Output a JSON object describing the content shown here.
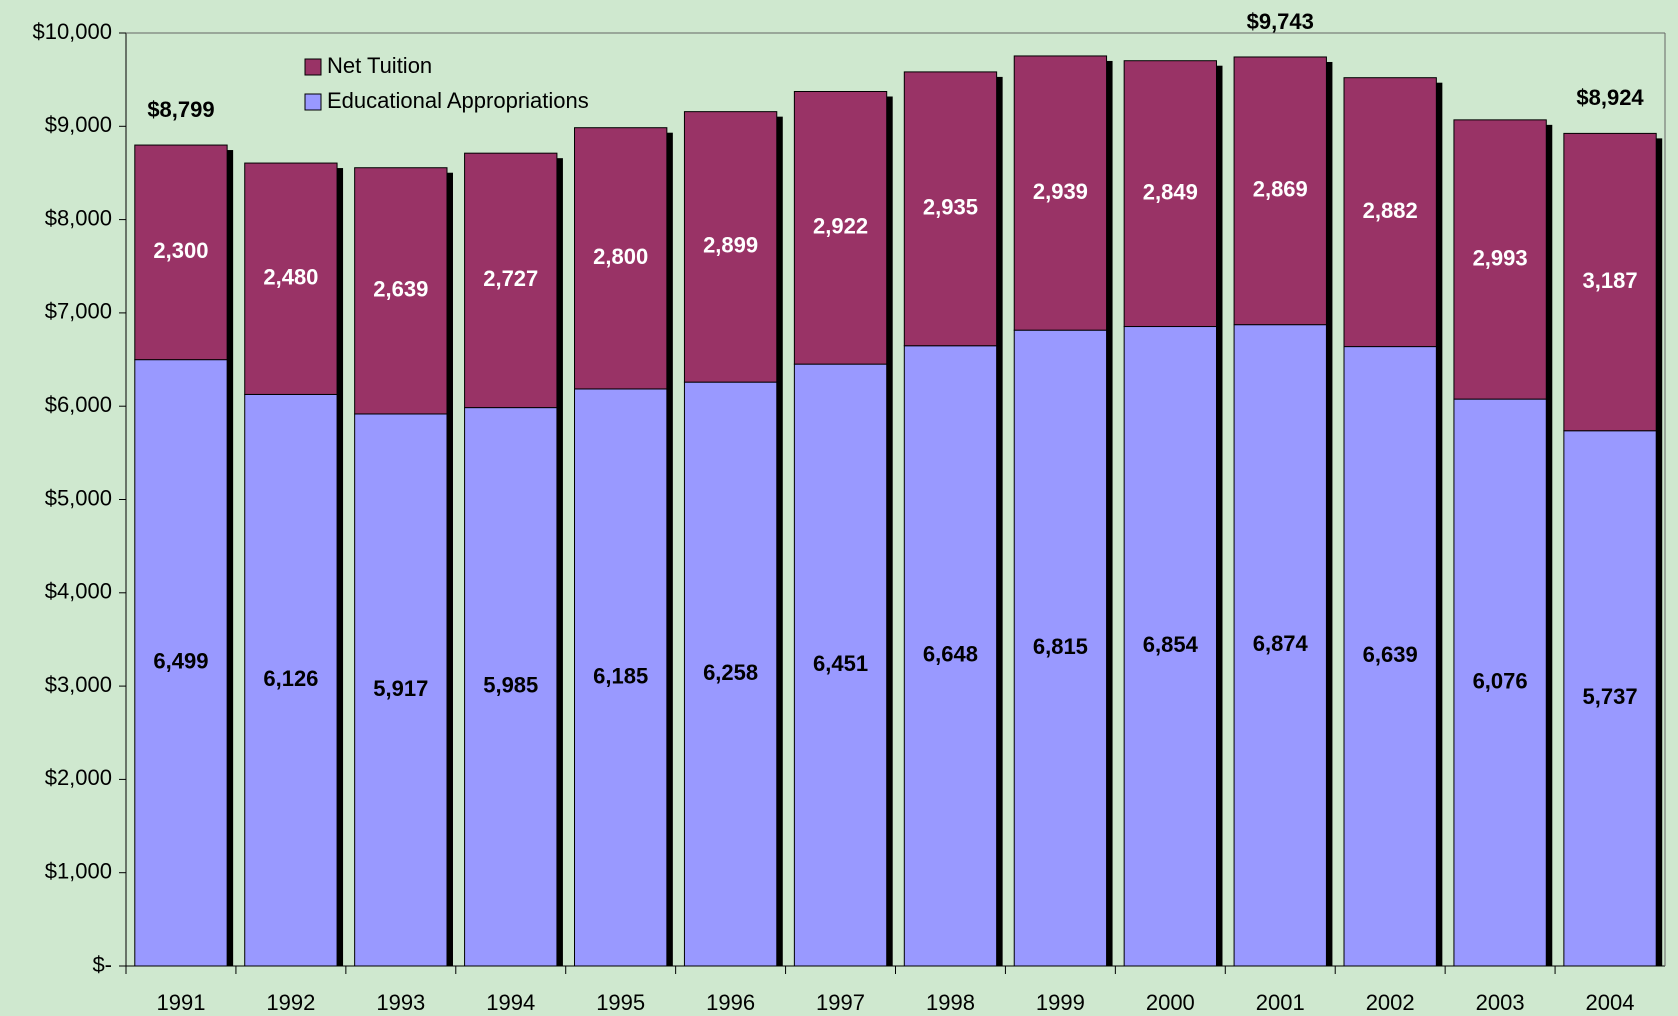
{
  "chart_data": {
    "type": "stacked_bar",
    "categories": [
      "1991",
      "1992",
      "1993",
      "1994",
      "1995",
      "1996",
      "1997",
      "1998",
      "1999",
      "2000",
      "2001",
      "2002",
      "2003",
      "2004"
    ],
    "series": [
      {
        "name": "Educational Appropriations",
        "color": "#9999ff",
        "values": [
          6499,
          6126,
          5917,
          5985,
          6185,
          6258,
          6451,
          6648,
          6815,
          6854,
          6874,
          6639,
          6076,
          5737
        ],
        "value_labels": [
          "6,499",
          "6,126",
          "5,917",
          "5,985",
          "6,185",
          "6,258",
          "6,451",
          "6,648",
          "6,815",
          "6,854",
          "6,874",
          "6,639",
          "6,076",
          "5,737"
        ],
        "label_color": "#000000"
      },
      {
        "name": "Net Tuition",
        "color": "#993366",
        "values": [
          2300,
          2480,
          2639,
          2727,
          2800,
          2899,
          2922,
          2935,
          2939,
          2849,
          2869,
          2882,
          2993,
          3187
        ],
        "value_labels": [
          "2,300",
          "2,480",
          "2,639",
          "2,727",
          "2,800",
          "2,899",
          "2,922",
          "2,935",
          "2,939",
          "2,849",
          "2,869",
          "2,882",
          "2,993",
          "3,187"
        ],
        "label_color": "#ffffff"
      }
    ],
    "annotations": [
      {
        "label": "$8,799",
        "value": 8799,
        "category": "1991"
      },
      {
        "label": "$9,743",
        "value": 9743,
        "category": "2001"
      },
      {
        "label": "$8,924",
        "value": 8924,
        "category": "2004"
      }
    ],
    "ylim": [
      0,
      10000
    ],
    "yticks": [
      {
        "value": 0,
        "label": "$-"
      },
      {
        "value": 1000,
        "label": "$1,000"
      },
      {
        "value": 2000,
        "label": "$2,000"
      },
      {
        "value": 3000,
        "label": "$3,000"
      },
      {
        "value": 4000,
        "label": "$4,000"
      },
      {
        "value": 5000,
        "label": "$5,000"
      },
      {
        "value": 6000,
        "label": "$6,000"
      },
      {
        "value": 7000,
        "label": "$7,000"
      },
      {
        "value": 8000,
        "label": "$8,000"
      },
      {
        "value": 9000,
        "label": "$9,000"
      },
      {
        "value": 10000,
        "label": "$10,000"
      }
    ],
    "grid": false,
    "legend": "top-left"
  }
}
